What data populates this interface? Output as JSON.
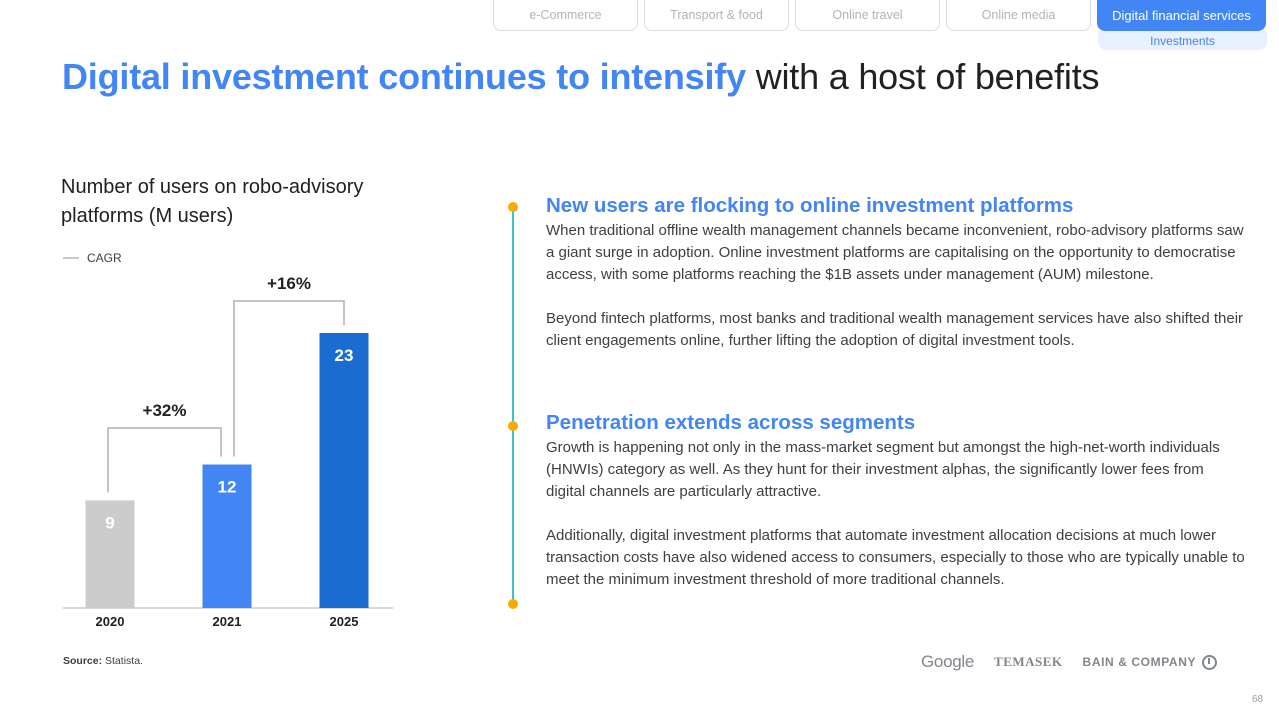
{
  "nav": {
    "tabs": [
      {
        "label": "e-Commerce"
      },
      {
        "label": "Transport & food"
      },
      {
        "label": "Online travel"
      },
      {
        "label": "Online media"
      },
      {
        "label": "Digital financial services"
      }
    ],
    "active_tab": "Digital financial services",
    "subtab": "Investments"
  },
  "title": {
    "accent": "Digital investment continues to intensify",
    "rest": "with a host of benefits"
  },
  "chart_title": "Number of users on robo-advisory platforms (M users)",
  "legend_label": "CAGR",
  "chart_data": {
    "type": "bar",
    "title": "Number of users on robo-advisory platforms (M users)",
    "categories": [
      "2020",
      "2021",
      "2025"
    ],
    "values": [
      9,
      12,
      23
    ],
    "bar_colors": [
      "#cccccc",
      "#4285f4",
      "#1a6ccf"
    ],
    "ylim": [
      0,
      24
    ],
    "xlabel": "",
    "ylabel": "",
    "cagr": [
      {
        "from": "2020",
        "to": "2021",
        "label": "+32%"
      },
      {
        "from": "2021",
        "to": "2025",
        "label": "+16%"
      }
    ]
  },
  "source": {
    "label": "Source:",
    "text": "Statista."
  },
  "sections": [
    {
      "heading": "New users are flocking to online investment platforms",
      "paragraphs": [
        "When traditional offline wealth management channels became inconvenient, robo-advisory platforms saw a giant surge in adoption. Online investment platforms are capitalising on the opportunity to democratise access, with some platforms reaching the $1B assets under management (AUM) milestone.",
        "Beyond fintech platforms, most banks and traditional wealth management services have also shifted their client engagements online, further lifting the adoption of digital investment tools."
      ]
    },
    {
      "heading": "Penetration extends across segments",
      "paragraphs": [
        "Growth is happening not only in the mass-market segment but amongst the high-net-worth individuals (HNWIs) category as well. As they hunt for their investment alphas, the significantly lower fees from digital channels are particularly attractive.",
        "Additionally, digital investment platforms that automate investment allocation decisions at much lower transaction costs have also widened access to consumers, especially to those who are typically unable to meet the minimum investment threshold of more traditional channels."
      ]
    }
  ],
  "logos": {
    "google": "Google",
    "temasek": "TEMASEK",
    "bain": "BAIN & COMPANY"
  },
  "page_number": "68",
  "colors": {
    "accent": "#4285f4",
    "timeline": "#3cc3c8",
    "dot": "#f9ab00"
  }
}
